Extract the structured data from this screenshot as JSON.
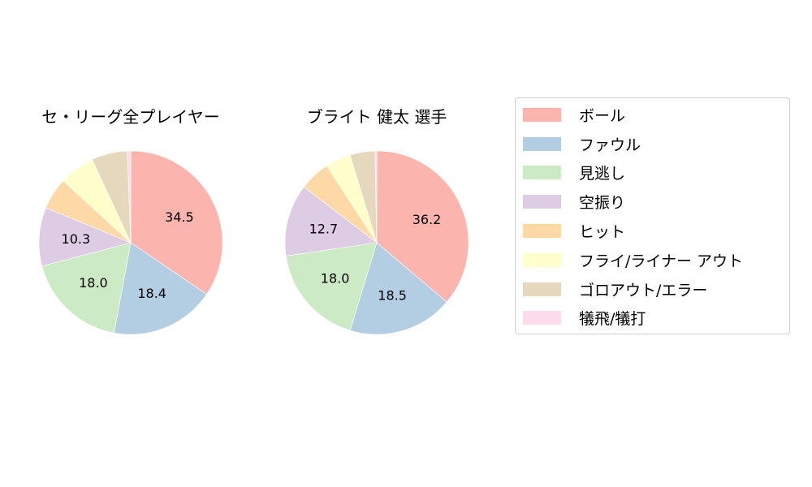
{
  "chart_data": [
    {
      "type": "pie",
      "title": "セ・リーグ全プレイヤー",
      "categories": [
        "ボール",
        "ファウル",
        "見逃し",
        "空振り",
        "ヒット",
        "フライ/ライナー アウト",
        "ゴロアウト/エラー",
        "犠飛/犠打"
      ],
      "values": [
        34.5,
        18.4,
        18.0,
        10.3,
        5.6,
        6.3,
        6.3,
        0.6
      ],
      "labels_shown": [
        "34.5",
        "18.4",
        "18.0",
        "10.3",
        "",
        "",
        "",
        ""
      ],
      "start_angle": 90,
      "direction": "clockwise"
    },
    {
      "type": "pie",
      "title": "ブライト 健太  選手",
      "categories": [
        "ボール",
        "ファウル",
        "見逃し",
        "空振り",
        "ヒット",
        "フライ/ライナー アウト",
        "ゴロアウト/エラー",
        "犠飛/犠打"
      ],
      "values": [
        36.2,
        18.5,
        18.0,
        12.7,
        5.4,
        4.5,
        4.4,
        0.3
      ],
      "labels_shown": [
        "36.2",
        "18.5",
        "18.0",
        "12.7",
        "",
        "",
        "",
        ""
      ],
      "start_angle": 90,
      "direction": "clockwise"
    }
  ],
  "titles": {
    "left": "セ・リーグ全プレイヤー",
    "right": "ブライト 健太  選手"
  },
  "legend": {
    "items": [
      {
        "label": "ボール",
        "color": "#fbb4ae"
      },
      {
        "label": "ファウル",
        "color": "#b3cde3"
      },
      {
        "label": "見逃し",
        "color": "#ccebc5"
      },
      {
        "label": "空振り",
        "color": "#decbe4"
      },
      {
        "label": "ヒット",
        "color": "#fed9a6"
      },
      {
        "label": "フライ/ライナー アウト",
        "color": "#ffffcc"
      },
      {
        "label": "ゴロアウト/エラー",
        "color": "#e5d8bd"
      },
      {
        "label": "犠飛/犠打",
        "color": "#fddaec"
      }
    ]
  },
  "colors": [
    "#fbb4ae",
    "#b3cde3",
    "#ccebc5",
    "#decbe4",
    "#fed9a6",
    "#ffffcc",
    "#e5d8bd",
    "#fddaec"
  ]
}
